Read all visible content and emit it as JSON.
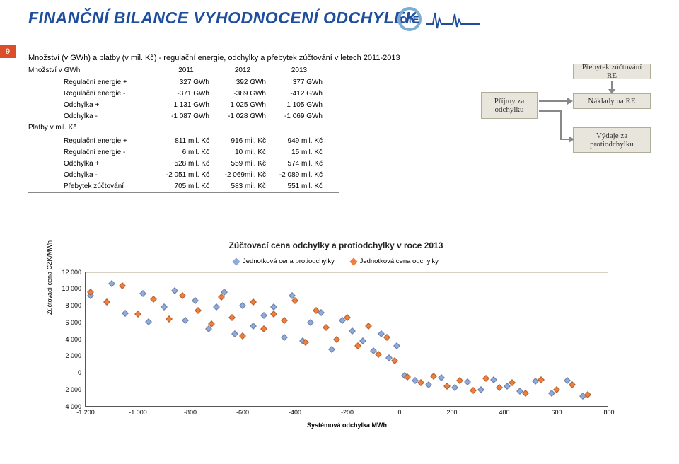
{
  "title": "FINANČNÍ BILANCE VYHODNOCENÍ ODCHYLEK",
  "page_number": "9",
  "logo_text": "OTE",
  "subtitle": "Množství (v GWh) a platby (v mil. Kč) - regulační energie, odchylky a přebytek zúčtování v letech 2011-2013",
  "table": {
    "header_label": "Množství v GWh",
    "years": [
      "2011",
      "2012",
      "2013"
    ],
    "top_rows": [
      {
        "label": "Regulační energie +",
        "vals": [
          "327 GWh",
          "392 GWh",
          "377 GWh"
        ]
      },
      {
        "label": "Regulační energie -",
        "vals": [
          "-371 GWh",
          "-389 GWh",
          "-412 GWh"
        ]
      },
      {
        "label": "Odchylka +",
        "vals": [
          "1 131 GWh",
          "1 025 GWh",
          "1 105 GWh"
        ]
      },
      {
        "label": "Odchylka -",
        "vals": [
          "-1 087 GWh",
          "-1 028 GWh",
          "-1 069 GWh"
        ]
      }
    ],
    "mid_label": "Platby v mil. Kč",
    "bottom_rows": [
      {
        "label": "Regulační energie +",
        "vals": [
          "811 mil. Kč",
          "916 mil. Kč",
          "949 mil. Kč"
        ]
      },
      {
        "label": "Regulační energie -",
        "vals": [
          "6 mil. Kč",
          "10 mil. Kč",
          "15 mil. Kč"
        ]
      },
      {
        "label": "Odchylka +",
        "vals": [
          "528 mil. Kč",
          "559 mil. Kč",
          "574 mil. Kč"
        ]
      },
      {
        "label": "Odchylka -",
        "vals": [
          "-2 051 mil. Kč",
          "-2 069mil. Kč",
          "-2 089 mil. Kč"
        ]
      },
      {
        "label": "Přebytek zúčtování",
        "vals": [
          "705 mil. Kč",
          "583 mil. Kč",
          "551 mil. Kč"
        ]
      }
    ]
  },
  "side_boxes": {
    "re_top": "Přebytek zúčtování RE",
    "prijmy": "Příjmy za odchylku",
    "naklady": "Náklady na RE",
    "vydaje": "Výdaje za protiodchylku"
  },
  "chart": {
    "title": "Zúčtovací cena odchylky a protiodchylky v roce 2013",
    "legend_protiod": "Jednotková cena protiodchylky",
    "legend_odch": "Jednotková cena odchylky",
    "yaxis_title": "Zúčtovací cena CZK/MWh",
    "xaxis_title": "Systémová odchylka MWh",
    "xlim": [
      -1200,
      800
    ],
    "ylim": [
      -4000,
      12000
    ],
    "yticks": [
      -4000,
      -2000,
      0,
      2000,
      4000,
      6000,
      8000,
      10000,
      12000
    ],
    "ytick_labels": [
      "-4 000",
      "-2 000",
      "0",
      "2 000",
      "4 000",
      "6 000",
      "8 000",
      "10 000",
      "12 000"
    ],
    "xticks": [
      -1200,
      -1000,
      -800,
      -600,
      -400,
      -200,
      0,
      200,
      400,
      600,
      800
    ],
    "xtick_labels": [
      "-1 200",
      "-1 000",
      "-800",
      "-600",
      "-400",
      "-200",
      "0",
      "200",
      "400",
      "600",
      "800"
    ],
    "colors": {
      "protiod": "#8faadc",
      "odch": "#f07f3c",
      "grid": "#d7d2c4",
      "axis": "#555"
    },
    "scatter_protiod": [
      [
        -1180,
        9200
      ],
      [
        -1100,
        10600
      ],
      [
        -1050,
        7100
      ],
      [
        -980,
        9400
      ],
      [
        -960,
        6100
      ],
      [
        -900,
        7800
      ],
      [
        -860,
        9800
      ],
      [
        -820,
        6200
      ],
      [
        -780,
        8600
      ],
      [
        -730,
        5200
      ],
      [
        -700,
        7800
      ],
      [
        -670,
        9600
      ],
      [
        -630,
        4600
      ],
      [
        -600,
        8000
      ],
      [
        -560,
        5600
      ],
      [
        -520,
        6800
      ],
      [
        -480,
        7800
      ],
      [
        -440,
        4200
      ],
      [
        -410,
        9200
      ],
      [
        -370,
        3800
      ],
      [
        -340,
        6000
      ],
      [
        -300,
        7200
      ],
      [
        -260,
        2800
      ],
      [
        -220,
        6200
      ],
      [
        -180,
        5000
      ],
      [
        -140,
        3800
      ],
      [
        -100,
        2600
      ],
      [
        -70,
        4600
      ],
      [
        -40,
        1800
      ],
      [
        -10,
        3200
      ],
      [
        20,
        -300
      ],
      [
        60,
        -900
      ],
      [
        110,
        -1400
      ],
      [
        160,
        -600
      ],
      [
        210,
        -1800
      ],
      [
        260,
        -1100
      ],
      [
        310,
        -2000
      ],
      [
        360,
        -800
      ],
      [
        410,
        -1600
      ],
      [
        460,
        -2200
      ],
      [
        520,
        -1000
      ],
      [
        580,
        -2400
      ],
      [
        640,
        -900
      ],
      [
        700,
        -2800
      ]
    ],
    "scatter_odch": [
      [
        -1180,
        9600
      ],
      [
        -1120,
        8400
      ],
      [
        -1060,
        10400
      ],
      [
        -1000,
        7000
      ],
      [
        -940,
        8800
      ],
      [
        -880,
        6400
      ],
      [
        -830,
        9200
      ],
      [
        -770,
        7400
      ],
      [
        -720,
        5800
      ],
      [
        -680,
        9000
      ],
      [
        -640,
        6600
      ],
      [
        -600,
        4400
      ],
      [
        -560,
        8400
      ],
      [
        -520,
        5200
      ],
      [
        -480,
        7000
      ],
      [
        -440,
        6200
      ],
      [
        -400,
        8600
      ],
      [
        -360,
        3600
      ],
      [
        -320,
        7400
      ],
      [
        -280,
        5400
      ],
      [
        -240,
        4000
      ],
      [
        -200,
        6600
      ],
      [
        -160,
        3200
      ],
      [
        -120,
        5600
      ],
      [
        -80,
        2200
      ],
      [
        -50,
        4200
      ],
      [
        -20,
        1400
      ],
      [
        30,
        -500
      ],
      [
        80,
        -1200
      ],
      [
        130,
        -400
      ],
      [
        180,
        -1600
      ],
      [
        230,
        -900
      ],
      [
        280,
        -2100
      ],
      [
        330,
        -700
      ],
      [
        380,
        -1800
      ],
      [
        430,
        -1200
      ],
      [
        480,
        -2400
      ],
      [
        540,
        -800
      ],
      [
        600,
        -2000
      ],
      [
        660,
        -1400
      ],
      [
        720,
        -2600
      ]
    ]
  }
}
